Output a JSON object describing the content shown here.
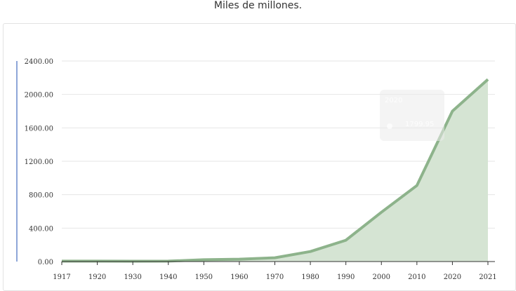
{
  "header": {
    "subtitle": "Miles de millones."
  },
  "tooltip": {
    "title": "2020",
    "value": "1799.95"
  },
  "colors": {
    "line": "#8db38b",
    "fill": "#d5e4d3",
    "accent": "#8ea6d8"
  },
  "chart_data": {
    "type": "area",
    "title": "",
    "xlabel": "",
    "ylabel": "",
    "ylim": [
      0,
      2400
    ],
    "yticks": [
      "0.00",
      "400.00",
      "800.00",
      "1200.00",
      "1600.00",
      "2000.00",
      "2400.00"
    ],
    "x": [
      "1917",
      "1920",
      "1930",
      "1940",
      "1950",
      "1960",
      "1970",
      "1980",
      "1990",
      "2000",
      "2010",
      "2020",
      "2021"
    ],
    "series": [
      {
        "values": [
          5,
          5,
          4,
          5,
          22,
          28,
          45,
          120,
          255,
          590,
          910,
          1799.95,
          2180
        ]
      }
    ],
    "grid": true
  }
}
